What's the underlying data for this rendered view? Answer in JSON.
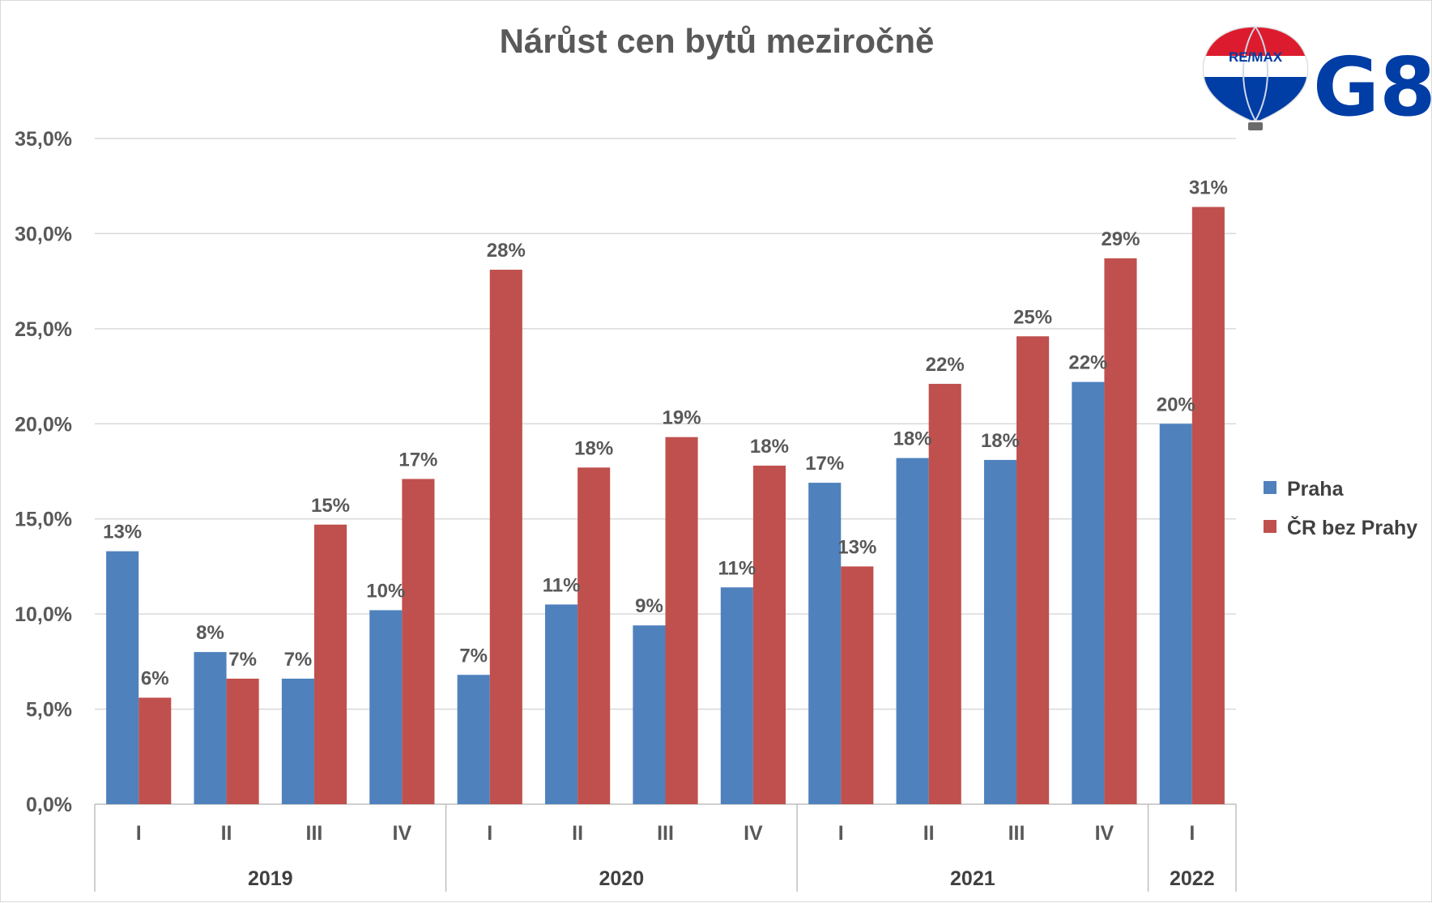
{
  "chart_data": {
    "type": "bar",
    "title": "Nárůst cen bytů meziročně",
    "xlabel": "",
    "ylabel": "",
    "ylim": [
      0,
      35
    ],
    "y_ticks": [
      "0,0%",
      "5,0%",
      "10,0%",
      "15,0%",
      "20,0%",
      "25,0%",
      "30,0%",
      "35,0%"
    ],
    "grid": true,
    "legend_position": "right",
    "groups": [
      {
        "label": "2019",
        "categories": [
          "I",
          "II",
          "III",
          "IV"
        ]
      },
      {
        "label": "2020",
        "categories": [
          "I",
          "II",
          "III",
          "IV"
        ]
      },
      {
        "label": "2021",
        "categories": [
          "I",
          "II",
          "III",
          "IV"
        ]
      },
      {
        "label": "2022",
        "categories": [
          "I"
        ]
      }
    ],
    "series": [
      {
        "name": "Praha",
        "color": "#4f81bd",
        "values": [
          13.3,
          8.0,
          6.6,
          10.2,
          6.8,
          10.5,
          9.4,
          11.4,
          16.9,
          18.2,
          18.1,
          22.2,
          20.0
        ],
        "labels": [
          "13%",
          "8%",
          "7%",
          "10%",
          "7%",
          "11%",
          "9%",
          "11%",
          "17%",
          "18%",
          "18%",
          "22%",
          "20%"
        ]
      },
      {
        "name": "ČR bez Prahy",
        "color": "#c0504d",
        "values": [
          5.6,
          6.6,
          14.7,
          17.1,
          28.1,
          17.7,
          19.3,
          17.8,
          12.5,
          22.1,
          24.6,
          28.7,
          31.4
        ],
        "labels": [
          "6%",
          "7%",
          "15%",
          "17%",
          "28%",
          "18%",
          "19%",
          "18%",
          "13%",
          "22%",
          "25%",
          "29%",
          "31%"
        ]
      }
    ]
  },
  "logo": {
    "remax_text": "RE/MAX",
    "brand_text": "G8",
    "balloon_colors": [
      "#dc1c2e",
      "#ffffff",
      "#003da5"
    ],
    "brand_color": "#003da5"
  }
}
